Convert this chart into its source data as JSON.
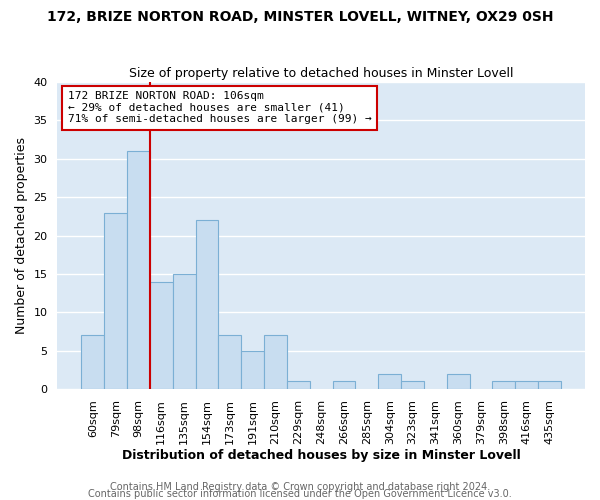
{
  "title1": "172, BRIZE NORTON ROAD, MINSTER LOVELL, WITNEY, OX29 0SH",
  "title2": "Size of property relative to detached houses in Minster Lovell",
  "xlabel": "Distribution of detached houses by size in Minster Lovell",
  "ylabel": "Number of detached properties",
  "bar_labels": [
    "60sqm",
    "79sqm",
    "98sqm",
    "116sqm",
    "135sqm",
    "154sqm",
    "173sqm",
    "191sqm",
    "210sqm",
    "229sqm",
    "248sqm",
    "266sqm",
    "285sqm",
    "304sqm",
    "323sqm",
    "341sqm",
    "360sqm",
    "379sqm",
    "398sqm",
    "416sqm",
    "435sqm"
  ],
  "bar_values": [
    7,
    23,
    31,
    14,
    15,
    22,
    7,
    5,
    7,
    1,
    0,
    1,
    0,
    2,
    1,
    0,
    2,
    0,
    1,
    1,
    1
  ],
  "bar_color": "#c8ddf0",
  "bar_edge_color": "#7bafd4",
  "vline_color": "#cc0000",
  "annotation_line1": "172 BRIZE NORTON ROAD: 106sqm",
  "annotation_line2": "← 29% of detached houses are smaller (41)",
  "annotation_line3": "71% of semi-detached houses are larger (99) →",
  "annotation_box_color": "#ffffff",
  "annotation_box_edge": "#cc0000",
  "ylim": [
    0,
    40
  ],
  "yticks": [
    0,
    5,
    10,
    15,
    20,
    25,
    30,
    35,
    40
  ],
  "footer1": "Contains HM Land Registry data © Crown copyright and database right 2024.",
  "footer2": "Contains public sector information licensed under the Open Government Licence v3.0.",
  "fig_bg_color": "#ffffff",
  "plot_bg_color": "#dce9f5",
  "grid_color": "#ffffff",
  "title1_fontsize": 10,
  "title2_fontsize": 9,
  "xlabel_fontsize": 9,
  "ylabel_fontsize": 9,
  "tick_fontsize": 8,
  "footer_fontsize": 7,
  "annotation_fontsize": 8
}
